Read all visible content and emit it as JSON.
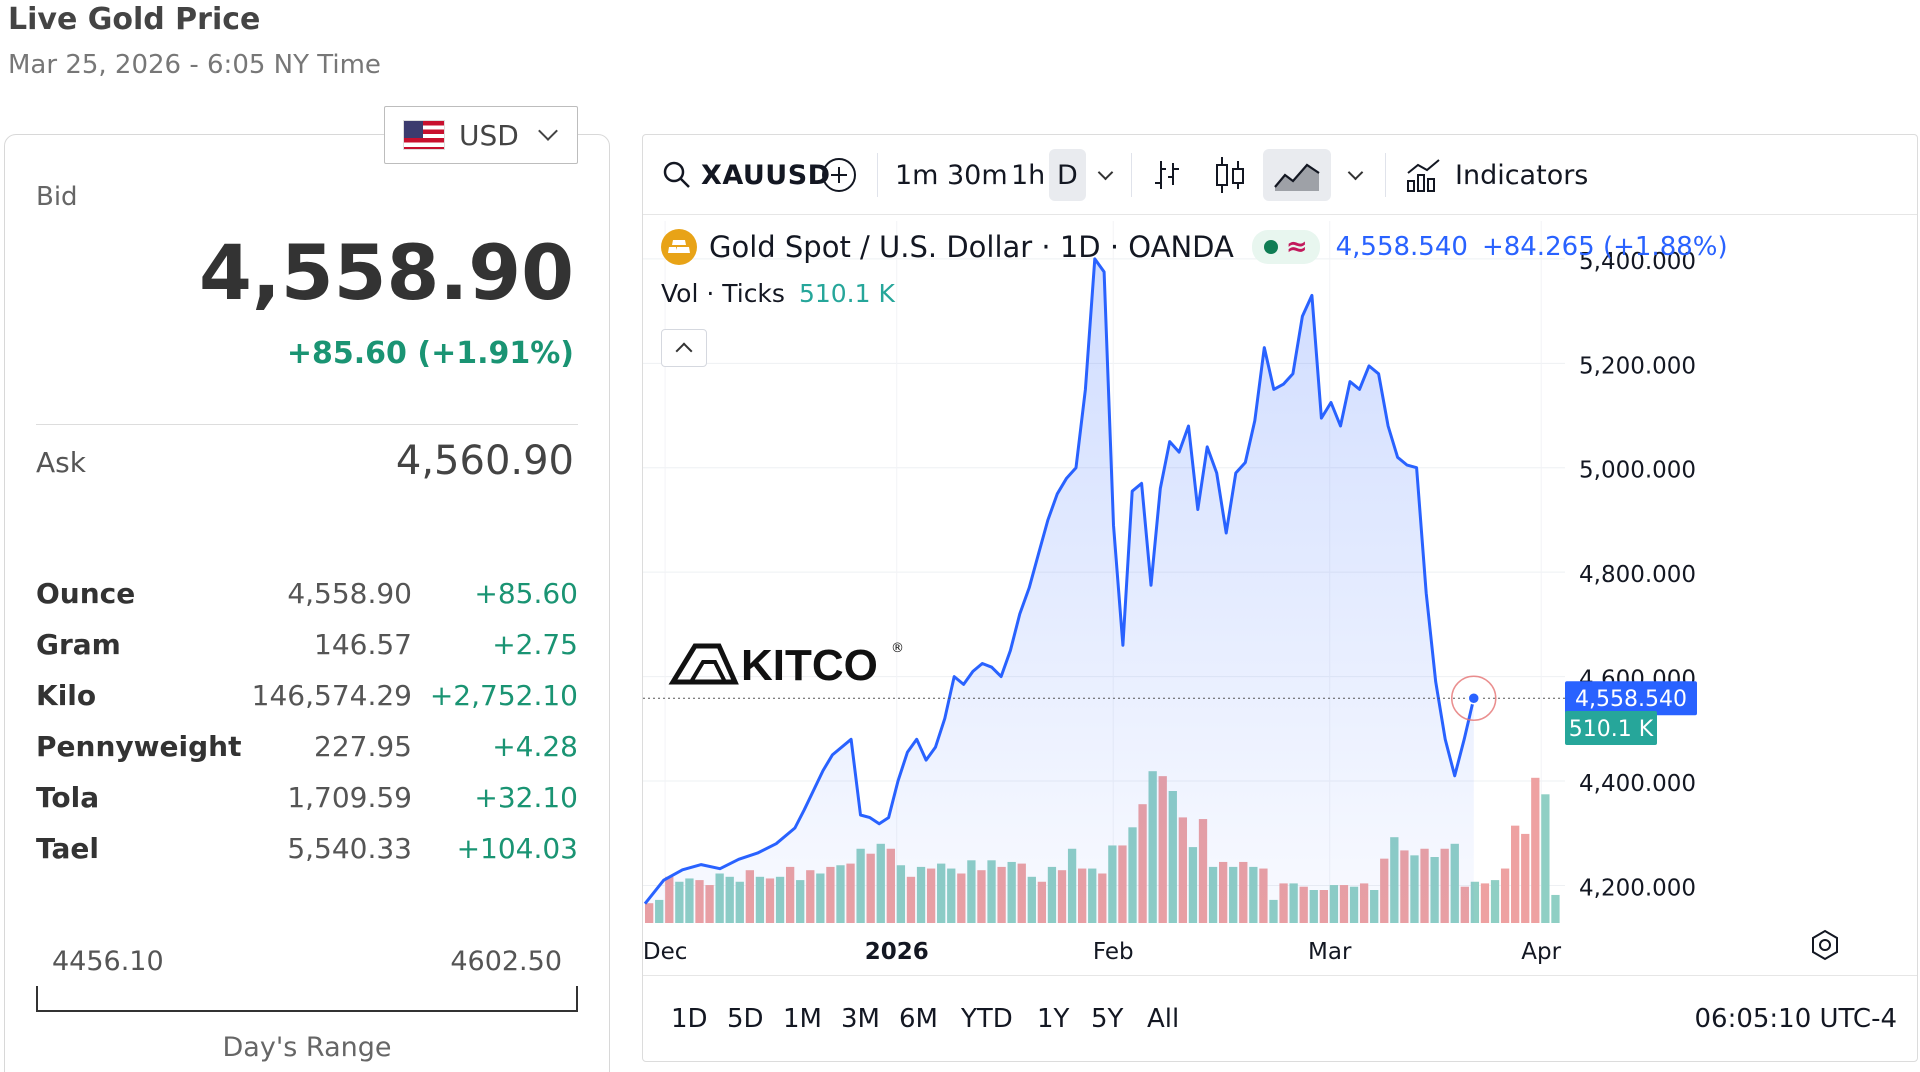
{
  "header": {
    "title": "Live Gold Price",
    "datetime": "Mar 25, 2026 - 6:05 NY Time"
  },
  "currency": {
    "label": "USD",
    "flag_icon": "us-flag-icon"
  },
  "quote": {
    "bid_label": "Bid",
    "bid_value": "4,558.90",
    "bid_change": "+85.60 (+1.91%)",
    "ask_label": "Ask",
    "ask_value": "4,560.90",
    "positive_color": "#1a9473"
  },
  "units": [
    {
      "name": "Ounce",
      "value": "4,558.90",
      "change": "+85.60"
    },
    {
      "name": "Gram",
      "value": "146.57",
      "change": "+2.75"
    },
    {
      "name": "Kilo",
      "value": "146,574.29",
      "change": "+2,752.10"
    },
    {
      "name": "Pennyweight",
      "value": "227.95",
      "change": "+4.28"
    },
    {
      "name": "Tola",
      "value": "1,709.59",
      "change": "+32.10"
    },
    {
      "name": "Tael",
      "value": "5,540.33",
      "change": "+104.03"
    }
  ],
  "days_range": {
    "low": "4456.10",
    "high": "4602.50",
    "label": "Day's Range"
  },
  "chart_toolbar": {
    "symbol": "XAUUSD",
    "intervals": [
      "1m",
      "30m",
      "1h",
      "D"
    ],
    "active_interval": "D",
    "indicators_label": "Indicators"
  },
  "chart_legend": {
    "title": "Gold Spot / U.S. Dollar · 1D · OANDA",
    "price": "4,558.540",
    "change": "+84.265 (+1.88%)",
    "vol_label": "Vol · Ticks",
    "vol_value": "510.1 K"
  },
  "chart_bottom": {
    "ranges": [
      "1D",
      "5D",
      "1M",
      "3M",
      "6M",
      "YTD",
      "1Y",
      "5Y",
      "All"
    ],
    "time": "06:05:10 UTC-4"
  },
  "watermark": "KITCO",
  "chart_data": {
    "type": "area",
    "title": "Gold Spot / U.S. Dollar · 1D · OANDA",
    "xlabel": "",
    "ylabel": "",
    "x_ticks": [
      "Dec",
      "2026",
      "Feb",
      "Mar",
      "Apr"
    ],
    "y_ticks": [
      "5,400.000",
      "5,200.000",
      "5,000.000",
      "4,800.000",
      "4,600.000",
      "4,400.000",
      "4,200.000"
    ],
    "ylim": [
      4130,
      5440
    ],
    "last_price_label": "4,558.540",
    "volume_label": "510.1 K",
    "line_color": "#2962ff",
    "up_volume_color": "#8fcfc4",
    "down_volume_color": "#eea1a1",
    "price_series": [
      {
        "i": 0,
        "v": 4165
      },
      {
        "i": 2,
        "v": 4210
      },
      {
        "i": 4,
        "v": 4230
      },
      {
        "i": 6,
        "v": 4240
      },
      {
        "i": 8,
        "v": 4232
      },
      {
        "i": 10,
        "v": 4250
      },
      {
        "i": 12,
        "v": 4262
      },
      {
        "i": 14,
        "v": 4280
      },
      {
        "i": 16,
        "v": 4310
      },
      {
        "i": 17,
        "v": 4345
      },
      {
        "i": 19,
        "v": 4420
      },
      {
        "i": 20,
        "v": 4450
      },
      {
        "i": 22,
        "v": 4480
      },
      {
        "i": 23,
        "v": 4335
      },
      {
        "i": 24,
        "v": 4330
      },
      {
        "i": 25,
        "v": 4318
      },
      {
        "i": 26,
        "v": 4330
      },
      {
        "i": 27,
        "v": 4400
      },
      {
        "i": 28,
        "v": 4455
      },
      {
        "i": 29,
        "v": 4480
      },
      {
        "i": 30,
        "v": 4440
      },
      {
        "i": 31,
        "v": 4465
      },
      {
        "i": 32,
        "v": 4520
      },
      {
        "i": 33,
        "v": 4600
      },
      {
        "i": 34,
        "v": 4585
      },
      {
        "i": 35,
        "v": 4610
      },
      {
        "i": 36,
        "v": 4625
      },
      {
        "i": 37,
        "v": 4618
      },
      {
        "i": 38,
        "v": 4600
      },
      {
        "i": 39,
        "v": 4650
      },
      {
        "i": 40,
        "v": 4720
      },
      {
        "i": 41,
        "v": 4770
      },
      {
        "i": 42,
        "v": 4835
      },
      {
        "i": 43,
        "v": 4900
      },
      {
        "i": 44,
        "v": 4950
      },
      {
        "i": 45,
        "v": 4980
      },
      {
        "i": 46,
        "v": 5000
      },
      {
        "i": 47,
        "v": 5150
      },
      {
        "i": 48,
        "v": 5400
      },
      {
        "i": 49,
        "v": 5375
      },
      {
        "i": 50,
        "v": 4890
      },
      {
        "i": 51,
        "v": 4660
      },
      {
        "i": 52,
        "v": 4955
      },
      {
        "i": 53,
        "v": 4970
      },
      {
        "i": 54,
        "v": 4775
      },
      {
        "i": 55,
        "v": 4960
      },
      {
        "i": 56,
        "v": 5050
      },
      {
        "i": 57,
        "v": 5030
      },
      {
        "i": 58,
        "v": 5080
      },
      {
        "i": 59,
        "v": 4920
      },
      {
        "i": 60,
        "v": 5040
      },
      {
        "i": 61,
        "v": 4990
      },
      {
        "i": 62,
        "v": 4875
      },
      {
        "i": 63,
        "v": 4990
      },
      {
        "i": 64,
        "v": 5010
      },
      {
        "i": 65,
        "v": 5090
      },
      {
        "i": 66,
        "v": 5230
      },
      {
        "i": 67,
        "v": 5150
      },
      {
        "i": 68,
        "v": 5160
      },
      {
        "i": 69,
        "v": 5180
      },
      {
        "i": 70,
        "v": 5290
      },
      {
        "i": 71,
        "v": 5330
      },
      {
        "i": 72,
        "v": 5095
      },
      {
        "i": 73,
        "v": 5125
      },
      {
        "i": 74,
        "v": 5080
      },
      {
        "i": 75,
        "v": 5165
      },
      {
        "i": 76,
        "v": 5150
      },
      {
        "i": 77,
        "v": 5195
      },
      {
        "i": 78,
        "v": 5180
      },
      {
        "i": 79,
        "v": 5080
      },
      {
        "i": 80,
        "v": 5020
      },
      {
        "i": 81,
        "v": 5005
      },
      {
        "i": 82,
        "v": 5000
      },
      {
        "i": 83,
        "v": 4760
      },
      {
        "i": 84,
        "v": 4590
      },
      {
        "i": 85,
        "v": 4480
      },
      {
        "i": 86,
        "v": 4410
      },
      {
        "i": 87,
        "v": 4480
      },
      {
        "i": 88,
        "v": 4558.54
      }
    ],
    "volume_series": [
      {
        "i": 0,
        "u": false,
        "h": 0.12
      },
      {
        "i": 1,
        "u": true,
        "h": 0.14
      },
      {
        "i": 2,
        "u": false,
        "h": 0.28
      },
      {
        "i": 3,
        "u": true,
        "h": 0.25
      },
      {
        "i": 4,
        "u": true,
        "h": 0.27
      },
      {
        "i": 5,
        "u": false,
        "h": 0.26
      },
      {
        "i": 6,
        "u": false,
        "h": 0.23
      },
      {
        "i": 7,
        "u": true,
        "h": 0.3
      },
      {
        "i": 8,
        "u": true,
        "h": 0.28
      },
      {
        "i": 9,
        "u": true,
        "h": 0.25
      },
      {
        "i": 10,
        "u": false,
        "h": 0.32
      },
      {
        "i": 11,
        "u": true,
        "h": 0.28
      },
      {
        "i": 12,
        "u": false,
        "h": 0.27
      },
      {
        "i": 13,
        "u": true,
        "h": 0.28
      },
      {
        "i": 14,
        "u": false,
        "h": 0.34
      },
      {
        "i": 15,
        "u": true,
        "h": 0.26
      },
      {
        "i": 16,
        "u": false,
        "h": 0.32
      },
      {
        "i": 17,
        "u": true,
        "h": 0.3
      },
      {
        "i": 18,
        "u": false,
        "h": 0.34
      },
      {
        "i": 19,
        "u": true,
        "h": 0.35
      },
      {
        "i": 20,
        "u": false,
        "h": 0.36
      },
      {
        "i": 21,
        "u": true,
        "h": 0.45
      },
      {
        "i": 22,
        "u": false,
        "h": 0.42
      },
      {
        "i": 23,
        "u": true,
        "h": 0.48
      },
      {
        "i": 24,
        "u": false,
        "h": 0.45
      },
      {
        "i": 25,
        "u": true,
        "h": 0.35
      },
      {
        "i": 26,
        "u": false,
        "h": 0.28
      },
      {
        "i": 27,
        "u": true,
        "h": 0.34
      },
      {
        "i": 28,
        "u": false,
        "h": 0.33
      },
      {
        "i": 29,
        "u": true,
        "h": 0.36
      },
      {
        "i": 30,
        "u": true,
        "h": 0.33
      },
      {
        "i": 31,
        "u": false,
        "h": 0.3
      },
      {
        "i": 32,
        "u": true,
        "h": 0.38
      },
      {
        "i": 33,
        "u": false,
        "h": 0.32
      },
      {
        "i": 34,
        "u": true,
        "h": 0.38
      },
      {
        "i": 35,
        "u": false,
        "h": 0.34
      },
      {
        "i": 36,
        "u": true,
        "h": 0.37
      },
      {
        "i": 37,
        "u": false,
        "h": 0.36
      },
      {
        "i": 38,
        "u": true,
        "h": 0.28
      },
      {
        "i": 39,
        "u": false,
        "h": 0.25
      },
      {
        "i": 40,
        "u": true,
        "h": 0.34
      },
      {
        "i": 41,
        "u": false,
        "h": 0.32
      },
      {
        "i": 42,
        "u": true,
        "h": 0.45
      },
      {
        "i": 43,
        "u": false,
        "h": 0.33
      },
      {
        "i": 44,
        "u": true,
        "h": 0.33
      },
      {
        "i": 45,
        "u": false,
        "h": 0.3
      },
      {
        "i": 46,
        "u": true,
        "h": 0.47
      },
      {
        "i": 47,
        "u": false,
        "h": 0.47
      },
      {
        "i": 48,
        "u": true,
        "h": 0.58
      },
      {
        "i": 49,
        "u": false,
        "h": 0.72
      },
      {
        "i": 50,
        "u": true,
        "h": 0.92
      },
      {
        "i": 51,
        "u": false,
        "h": 0.89
      },
      {
        "i": 52,
        "u": true,
        "h": 0.8
      },
      {
        "i": 53,
        "u": false,
        "h": 0.64
      },
      {
        "i": 54,
        "u": true,
        "h": 0.46
      },
      {
        "i": 55,
        "u": false,
        "h": 0.63
      },
      {
        "i": 56,
        "u": true,
        "h": 0.34
      },
      {
        "i": 57,
        "u": false,
        "h": 0.37
      },
      {
        "i": 58,
        "u": true,
        "h": 0.34
      },
      {
        "i": 59,
        "u": false,
        "h": 0.37
      },
      {
        "i": 60,
        "u": true,
        "h": 0.34
      },
      {
        "i": 61,
        "u": false,
        "h": 0.33
      },
      {
        "i": 62,
        "u": true,
        "h": 0.14
      },
      {
        "i": 63,
        "u": false,
        "h": 0.24
      },
      {
        "i": 64,
        "u": true,
        "h": 0.24
      },
      {
        "i": 65,
        "u": false,
        "h": 0.22
      },
      {
        "i": 66,
        "u": true,
        "h": 0.2
      },
      {
        "i": 67,
        "u": false,
        "h": 0.2
      },
      {
        "i": 68,
        "u": true,
        "h": 0.23
      },
      {
        "i": 69,
        "u": false,
        "h": 0.23
      },
      {
        "i": 70,
        "u": true,
        "h": 0.22
      },
      {
        "i": 71,
        "u": false,
        "h": 0.24
      },
      {
        "i": 72,
        "u": true,
        "h": 0.2
      },
      {
        "i": 73,
        "u": false,
        "h": 0.39
      },
      {
        "i": 74,
        "u": true,
        "h": 0.52
      },
      {
        "i": 75,
        "u": false,
        "h": 0.44
      },
      {
        "i": 76,
        "u": true,
        "h": 0.41
      },
      {
        "i": 77,
        "u": false,
        "h": 0.45
      },
      {
        "i": 78,
        "u": true,
        "h": 0.4
      },
      {
        "i": 79,
        "u": false,
        "h": 0.45
      },
      {
        "i": 80,
        "u": true,
        "h": 0.48
      },
      {
        "i": 81,
        "u": false,
        "h": 0.22
      },
      {
        "i": 82,
        "u": true,
        "h": 0.25
      },
      {
        "i": 83,
        "u": false,
        "h": 0.24
      },
      {
        "i": 84,
        "u": true,
        "h": 0.26
      },
      {
        "i": 85,
        "u": false,
        "h": 0.33
      },
      {
        "i": 86,
        "u": false,
        "h": 0.59
      },
      {
        "i": 87,
        "u": false,
        "h": 0.54
      },
      {
        "i": 88,
        "u": false,
        "h": 0.88
      },
      {
        "i": 89,
        "u": true,
        "h": 0.78
      },
      {
        "i": 90,
        "u": true,
        "h": 0.17
      }
    ]
  }
}
